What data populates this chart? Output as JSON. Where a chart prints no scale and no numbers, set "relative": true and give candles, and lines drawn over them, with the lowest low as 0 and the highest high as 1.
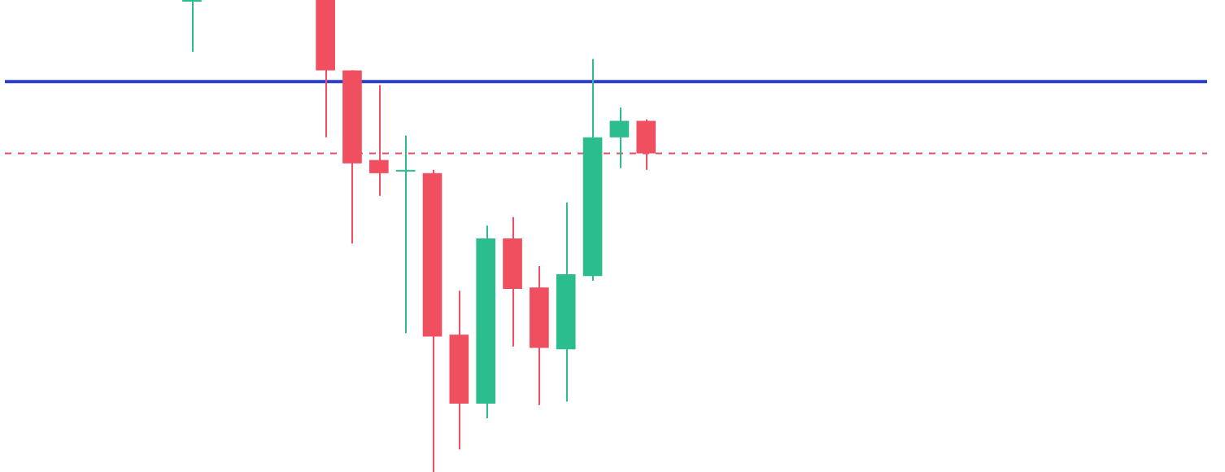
{
  "chart_data": {
    "type": "candlestick",
    "relative": true,
    "categories": [
      null,
      null,
      null,
      null,
      null,
      null,
      null,
      null,
      null,
      null,
      null,
      null,
      null,
      null,
      null,
      null,
      null,
      null,
      null,
      null,
      null,
      null,
      null,
      null,
      null,
      null,
      null,
      null,
      null,
      null,
      null,
      null,
      null,
      null,
      null,
      null,
      null,
      null,
      null,
      null,
      null,
      null,
      null,
      null,
      null,
      null
    ],
    "ohlc": [
      null,
      null,
      null,
      null,
      null,
      null,
      null,
      [
        1,
        1,
        0.89,
        1
      ],
      null,
      null,
      null,
      null,
      [
        1,
        1,
        0.709,
        0.851
      ],
      [
        0.851,
        0.851,
        0.484,
        0.654
      ],
      [
        0.661,
        0.82,
        0.585,
        0.633
      ],
      [
        0.637,
        0.713,
        0.294,
        0.64
      ],
      [
        0.633,
        0.64,
        0,
        0.287
      ],
      [
        0.291,
        0.384,
        0.048,
        0.145
      ],
      [
        0.145,
        0.522,
        0.114,
        0.495
      ],
      [
        0.495,
        0.54,
        0.266,
        0.388
      ],
      [
        0.391,
        0.436,
        0.142,
        0.263
      ],
      [
        0.26,
        0.571,
        0.149,
        0.419
      ],
      [
        0.415,
        0.875,
        0.405,
        0.709
      ],
      [
        0.709,
        0.772,
        0.644,
        0.744
      ],
      [
        0.744,
        0.747,
        0.64,
        0.675
      ],
      null,
      null,
      null,
      null,
      null,
      null,
      null,
      null,
      null,
      null,
      null,
      null,
      null,
      null,
      null,
      null,
      null,
      null,
      null,
      null,
      null
    ],
    "colors": [
      null,
      null,
      null,
      null,
      null,
      null,
      null,
      "#2bbd8e",
      null,
      null,
      null,
      null,
      "#ef4f5f",
      "#ef4f5f",
      "#ef4f5f",
      "#2bbd8e",
      "#ef4f5f",
      "#ef4f5f",
      "#2bbd8e",
      "#ef4f5f",
      "#ef4f5f",
      "#2bbd8e",
      "#2bbd8e",
      "#2bbd8e",
      "#ef4f5f",
      null,
      null,
      null,
      null,
      null,
      null,
      null,
      null,
      null,
      null,
      null,
      null,
      null,
      null,
      null,
      null,
      null,
      null,
      null,
      null,
      null
    ],
    "ref_lines": [
      {
        "axis": "y",
        "value": 0.827,
        "color": "#2b3fc6",
        "line_style": "solid"
      },
      {
        "axis": "y",
        "value": 0.675,
        "color": "#e05566",
        "line_style": "dashed"
      }
    ]
  }
}
